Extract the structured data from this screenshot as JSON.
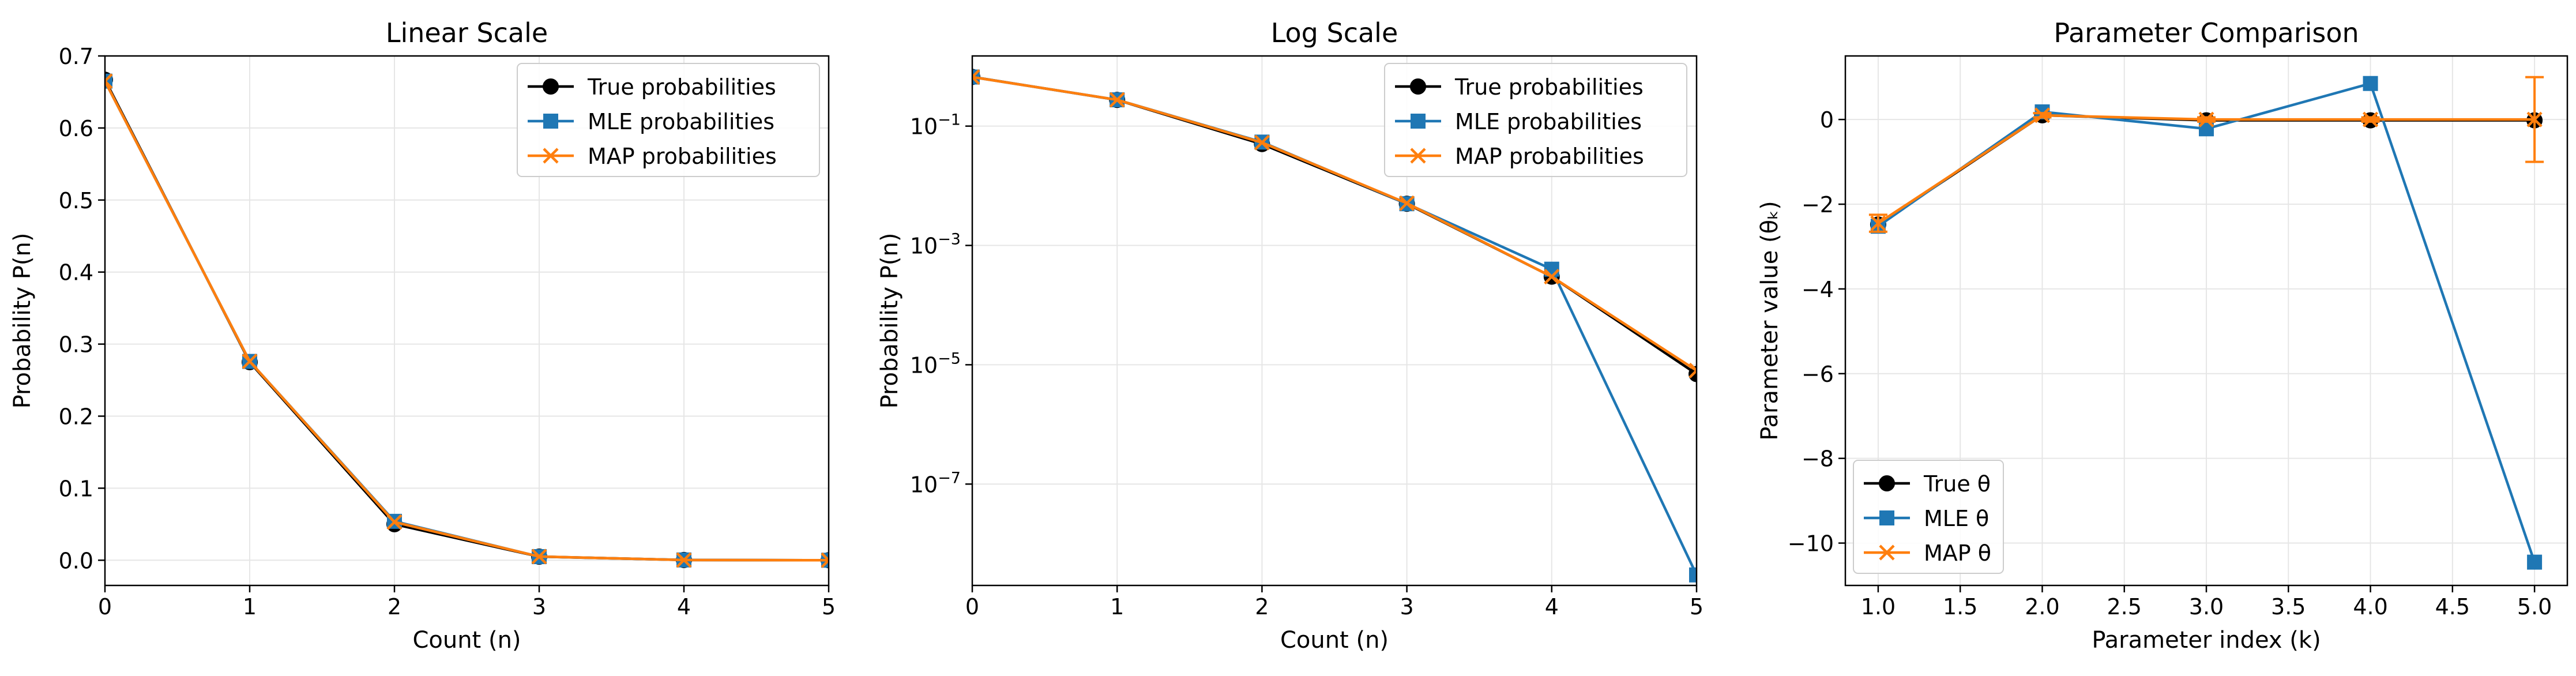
{
  "figure": {
    "colors": {
      "true": "#000000",
      "mle": "#1f77b4",
      "map": "#ff7f0e",
      "grid": "#e6e6e6"
    }
  },
  "chart_data": [
    {
      "type": "line",
      "title": "Linear Scale",
      "xlabel": "Count (n)",
      "ylabel": "Probability P(n)",
      "xlim": [
        0,
        5
      ],
      "ylim": [
        -0.035,
        0.7
      ],
      "yscale": "linear",
      "xticks": [
        0,
        1,
        2,
        3,
        4,
        5
      ],
      "xtick_labels": [
        "0",
        "1",
        "2",
        "3",
        "4",
        "5"
      ],
      "yticks": [
        0.0,
        0.1,
        0.2,
        0.3,
        0.4,
        0.5,
        0.6,
        0.7
      ],
      "ytick_labels": [
        "0.0",
        "0.1",
        "0.2",
        "0.3",
        "0.4",
        "0.5",
        "0.6",
        "0.7"
      ],
      "grid": true,
      "legend": "top-right",
      "x": [
        0,
        1,
        2,
        3,
        4,
        5
      ],
      "series": [
        {
          "name": "True probabilities",
          "marker": "circle",
          "color": "#000000",
          "values": [
            0.667,
            0.275,
            0.05,
            0.005,
            0.0003,
            7e-06
          ]
        },
        {
          "name": "MLE probabilities",
          "marker": "square",
          "color": "#1f77b4",
          "values": [
            0.665,
            0.276,
            0.054,
            0.005,
            0.0004,
            3e-09
          ]
        },
        {
          "name": "MAP probabilities",
          "marker": "x",
          "color": "#ff7f0e",
          "values": [
            0.665,
            0.276,
            0.053,
            0.0051,
            0.0003,
            8e-06
          ]
        }
      ]
    },
    {
      "type": "line",
      "title": "Log Scale",
      "xlabel": "Count (n)",
      "ylabel": "Probability P(n)",
      "xlim": [
        0,
        5
      ],
      "ylim": [
        2e-09,
        1.5
      ],
      "yscale": "log",
      "xticks": [
        0,
        1,
        2,
        3,
        4,
        5
      ],
      "xtick_labels": [
        "0",
        "1",
        "2",
        "3",
        "4",
        "5"
      ],
      "yticks": [
        1e-07,
        1e-05,
        0.001,
        0.1
      ],
      "ytick_labels": [
        {
          "base": "10",
          "exp": "−7"
        },
        {
          "base": "10",
          "exp": "−5"
        },
        {
          "base": "10",
          "exp": "−3"
        },
        {
          "base": "10",
          "exp": "−1"
        }
      ],
      "grid": true,
      "legend": "top-right",
      "x": [
        0,
        1,
        2,
        3,
        4,
        5
      ],
      "series": [
        {
          "name": "True probabilities",
          "marker": "circle",
          "color": "#000000",
          "values": [
            0.667,
            0.275,
            0.05,
            0.005,
            0.0003,
            7e-06
          ]
        },
        {
          "name": "MLE probabilities",
          "marker": "square",
          "color": "#1f77b4",
          "values": [
            0.665,
            0.276,
            0.054,
            0.005,
            0.0004,
            3e-09
          ]
        },
        {
          "name": "MAP probabilities",
          "marker": "x",
          "color": "#ff7f0e",
          "values": [
            0.665,
            0.276,
            0.053,
            0.0051,
            0.0003,
            8e-06
          ]
        }
      ]
    },
    {
      "type": "line",
      "title": "Parameter Comparison",
      "xlabel": "Parameter index (k)",
      "ylabel": "Parameter value (θₖ)",
      "xlim": [
        0.8,
        5.2
      ],
      "ylim": [
        -11.0,
        1.5
      ],
      "yscale": "linear",
      "xticks": [
        1.0,
        1.5,
        2.0,
        2.5,
        3.0,
        3.5,
        4.0,
        4.5,
        5.0
      ],
      "xtick_labels": [
        "1.0",
        "1.5",
        "2.0",
        "2.5",
        "3.0",
        "3.5",
        "4.0",
        "4.5",
        "5.0"
      ],
      "yticks": [
        0,
        -2,
        -4,
        -6,
        -8,
        -10
      ],
      "ytick_labels": [
        "0",
        "−2",
        "−4",
        "−6",
        "−8",
        "−10"
      ],
      "grid": true,
      "legend": "bottom-left",
      "x": [
        1,
        2,
        3,
        4,
        5
      ],
      "series": [
        {
          "name": "True θ",
          "marker": "circle",
          "color": "#000000",
          "values": [
            -2.48,
            0.1,
            -0.02,
            -0.02,
            -0.02
          ]
        },
        {
          "name": "MLE θ",
          "marker": "square",
          "color": "#1f77b4",
          "values": [
            -2.52,
            0.18,
            -0.22,
            0.85,
            -10.45
          ]
        },
        {
          "name": "MAP θ",
          "marker": "x",
          "color": "#ff7f0e",
          "values": [
            -2.45,
            0.1,
            0.0,
            0.0,
            0.0
          ],
          "error": [
            0.2,
            0.05,
            0.05,
            0.05,
            1.0
          ]
        }
      ]
    }
  ]
}
